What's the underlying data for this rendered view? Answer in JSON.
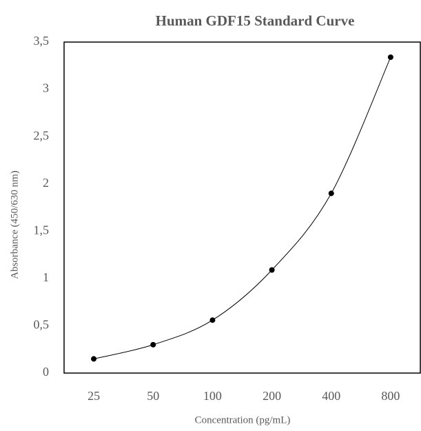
{
  "chart_data": {
    "type": "line",
    "title": "Human GDF15 Standard Curve",
    "x_label": "Concentration (pg/mL)",
    "y_label": "Absorbance (450/630 nm)",
    "categories": [
      "25",
      "50",
      "100",
      "200",
      "400",
      "800"
    ],
    "values": [
      0.15,
      0.3,
      0.56,
      1.09,
      1.9,
      3.34
    ],
    "color": "#000000",
    "ylim": [
      0,
      3.5
    ],
    "yticks": [
      0,
      {
        "value": 0.5,
        "label": "0,5"
      },
      1,
      {
        "value": 1.5,
        "label": "1,5"
      },
      2,
      {
        "value": 2.5,
        "label": "2,5"
      },
      3,
      {
        "value": 3.5,
        "label": "3,5"
      }
    ],
    "grid": false
  }
}
